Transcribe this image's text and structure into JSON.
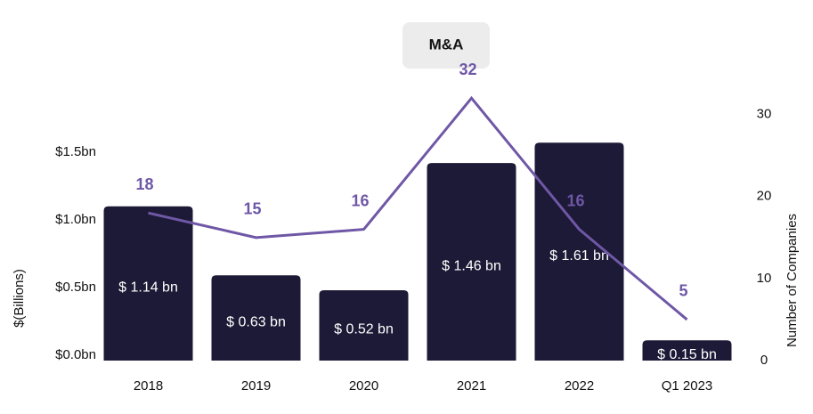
{
  "chart_data": {
    "type": "bar-line",
    "title": "M&A",
    "categories": [
      "2018",
      "2019",
      "2020",
      "2021",
      "2022",
      "Q1 2023"
    ],
    "series": [
      {
        "name": "$(Billions)",
        "type": "bar",
        "color": "#1c1a36",
        "values": [
          1.14,
          0.63,
          0.52,
          1.46,
          1.61,
          0.15
        ],
        "value_labels": [
          "$ 1.14 bn",
          "$ 0.63 bn",
          "$ 0.52 bn",
          "$ 1.46 bn",
          "$ 1.61 bn",
          "$ 0.15 bn"
        ]
      },
      {
        "name": "Number of Companies",
        "type": "line",
        "axis": "y2",
        "color": "#6f57a6",
        "values": [
          18,
          15,
          16,
          32,
          16,
          5
        ]
      }
    ],
    "ylabel": "$(Billions)",
    "y2label": "Number of Companies",
    "ylim": [
      0,
      2
    ],
    "yticks": [
      {
        "value": 0,
        "label": "$0.0bn"
      },
      {
        "value": 0.5,
        "label": "$0.5bn"
      },
      {
        "value": 1,
        "label": "$1.0bn"
      },
      {
        "value": 1.5,
        "label": "$1.5bn"
      }
    ],
    "y2lim": [
      0,
      33
    ],
    "y2ticks": [
      0,
      10,
      20,
      30
    ]
  }
}
